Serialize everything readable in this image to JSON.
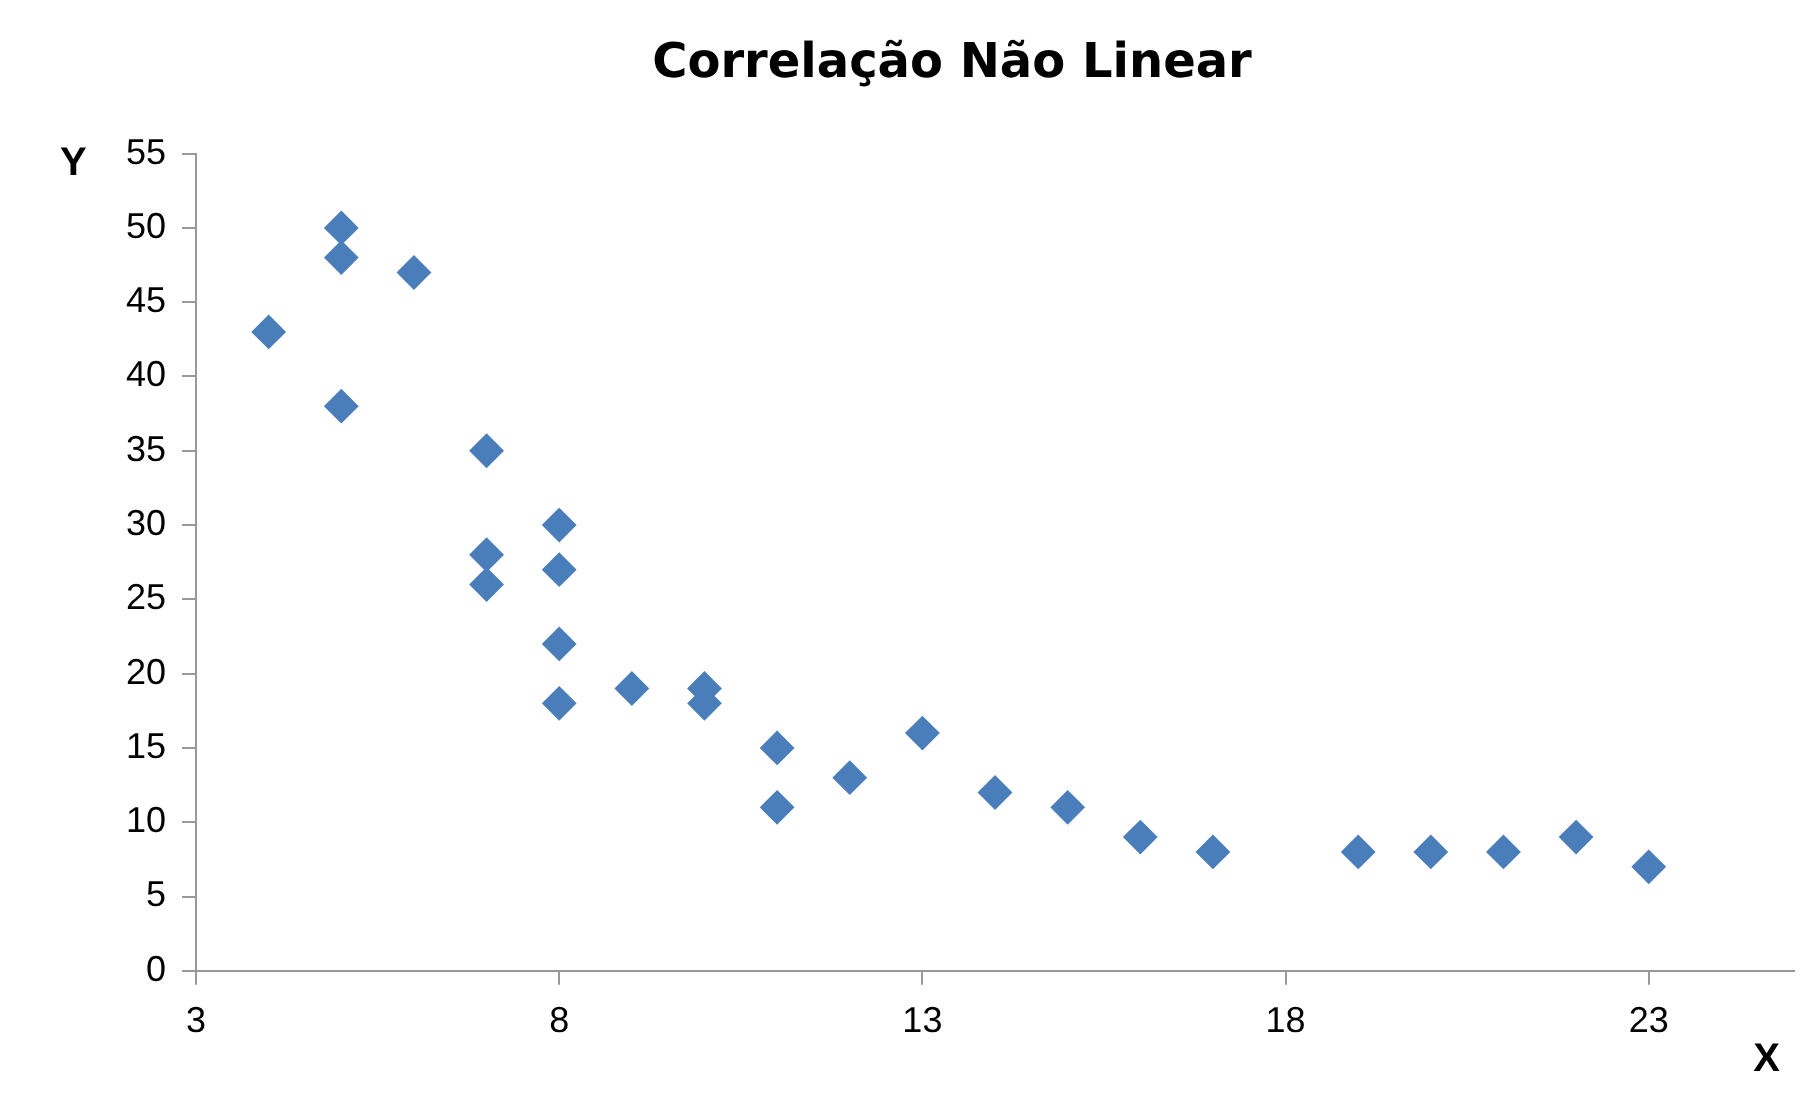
{
  "chart_data": {
    "type": "scatter",
    "title": "Correlação Não Linear",
    "xlabel": "X",
    "ylabel": "Y",
    "x": [
      4,
      5,
      5,
      5,
      6,
      7,
      7,
      7,
      8,
      8,
      8,
      8,
      9,
      10,
      10,
      11,
      11,
      12,
      13,
      14,
      15,
      16,
      17,
      19,
      20,
      21,
      22,
      23
    ],
    "series": [
      {
        "color": "#4a7ebb",
        "values": [
          43,
          50,
          48,
          38,
          47,
          35,
          28,
          26,
          30,
          27,
          22,
          18,
          19,
          19,
          18,
          15,
          11,
          13,
          16,
          12,
          11,
          9,
          8,
          8,
          8,
          8,
          9,
          7
        ]
      }
    ],
    "xlim": [
      3,
      25
    ],
    "xticks": [
      3,
      8,
      13,
      18,
      23
    ],
    "ylim": [
      0,
      55
    ],
    "yticks": [
      0,
      5,
      10,
      15,
      20,
      25,
      30,
      35,
      40,
      45,
      50,
      55
    ],
    "grid": false,
    "legend": false,
    "marker": "diamond"
  }
}
